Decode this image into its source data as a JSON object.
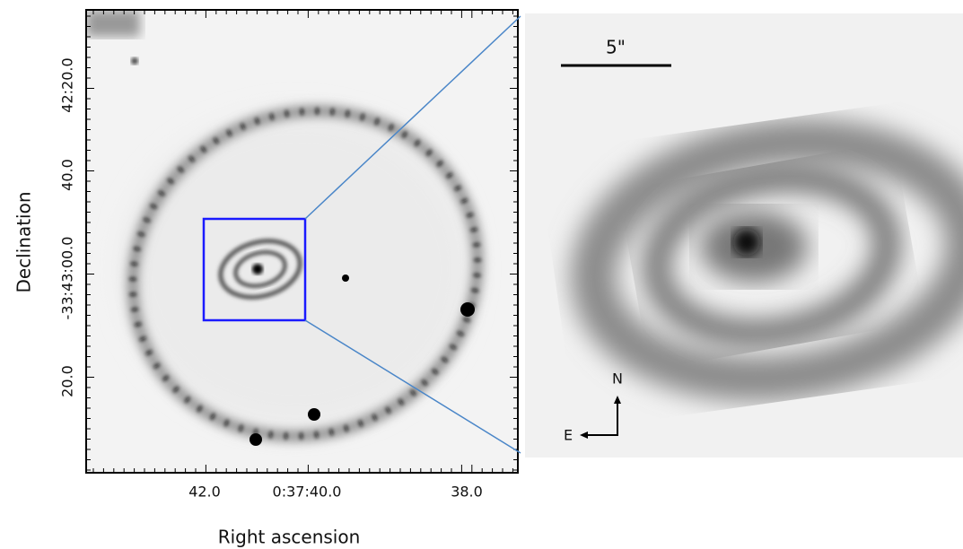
{
  "left_panel": {
    "x_label": "Right ascension",
    "y_label": "Declination",
    "x_ticks": [
      "42.0",
      "0:37:40.0",
      "38.0"
    ],
    "y_ticks": [
      "42:20.0",
      "40.0",
      "-33:43:00.0",
      "20.0"
    ]
  },
  "right_panel": {
    "scale_bar_label": "5\"",
    "compass": {
      "north": "N",
      "east": "E"
    }
  }
}
